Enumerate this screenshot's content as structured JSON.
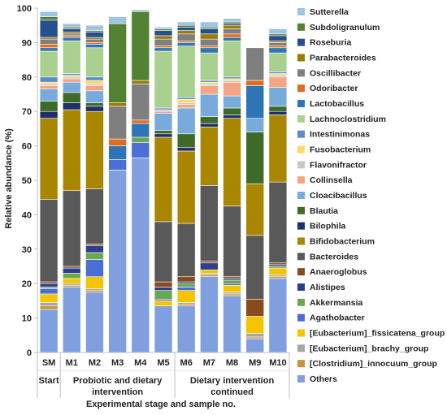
{
  "chart_data": {
    "type": "bar",
    "stacked": true,
    "ylabel": "Relative abundance (%)",
    "xlabel": "Experimental stage and sample no.",
    "ylim": [
      0,
      100
    ],
    "yticks": [
      0,
      10,
      20,
      30,
      40,
      50,
      60,
      70,
      80,
      90,
      100
    ],
    "grid": false,
    "legend_position": "right",
    "categories": [
      "SM",
      "M1",
      "M2",
      "M3",
      "M4",
      "M5",
      "M6",
      "M7",
      "M8",
      "M9",
      "M10"
    ],
    "groups": [
      {
        "label": "Start",
        "categories": [
          "SM"
        ]
      },
      {
        "label": "Probiotic and dietary intervention",
        "categories": [
          "M1",
          "M2",
          "M3",
          "M4",
          "M5"
        ]
      },
      {
        "label": "Dietary intervention continued",
        "categories": [
          "M6",
          "M7",
          "M8",
          "M9",
          "M10"
        ]
      }
    ],
    "series": [
      {
        "name": "Others",
        "color": "#7f9fde",
        "values": [
          12.5,
          19.0,
          17.5,
          53.0,
          56.5,
          13.5,
          13.5,
          22.0,
          16.5,
          4.0,
          21.5
        ]
      },
      {
        "name": "[Clostridium]_innocuum_group",
        "color": "#c6953b",
        "values": [
          1.0,
          0.5,
          0.5,
          0,
          0,
          0,
          0.5,
          0.5,
          0.5,
          0.5,
          0.5
        ]
      },
      {
        "name": "[Eubacterium]_brachy_group",
        "color": "#a6a6a6",
        "values": [
          1.0,
          0.5,
          0.5,
          0,
          0,
          0,
          0.5,
          0.5,
          0.5,
          1.0,
          0.5
        ]
      },
      {
        "name": "[Eubacterium]_fissicatena_group",
        "color": "#f5c400",
        "values": [
          2.5,
          1.5,
          3.5,
          0,
          0,
          1.5,
          3.5,
          1.0,
          2.0,
          5.0,
          2.0
        ]
      },
      {
        "name": "Agathobacter",
        "color": "#4a6dd6",
        "values": [
          1.5,
          0,
          5.0,
          3.0,
          4.5,
          0.5,
          1.0,
          0,
          0.5,
          0,
          0
        ]
      },
      {
        "name": "Akkermansia",
        "color": "#6aa84f",
        "values": [
          0.5,
          1.5,
          2.0,
          0,
          1.5,
          2.5,
          1.0,
          0,
          1.0,
          0,
          0.5
        ]
      },
      {
        "name": "Alistipes",
        "color": "#2e3e8e",
        "values": [
          1.0,
          1.5,
          2.0,
          0,
          0,
          1.0,
          0.5,
          2.0,
          0.5,
          0,
          0.5
        ]
      },
      {
        "name": "Anaeroglobus",
        "color": "#8a4b1c",
        "values": [
          0.5,
          0.5,
          0.5,
          0,
          0,
          1.5,
          1.5,
          0.5,
          0.5,
          5.0,
          0.5
        ]
      },
      {
        "name": "Bacteroides",
        "color": "#595959",
        "values": [
          24.0,
          22.0,
          16.0,
          0,
          0,
          17.5,
          15.5,
          22.0,
          20.5,
          18.5,
          23.5
        ]
      },
      {
        "name": "Bifidobacterium",
        "color": "#a88600",
        "values": [
          23.5,
          23.5,
          22.5,
          0,
          0,
          24.5,
          21.0,
          17.0,
          25.5,
          15.0,
          19.5
        ]
      },
      {
        "name": "Bilophila",
        "color": "#1f2f6b",
        "values": [
          2.0,
          2.0,
          1.5,
          0,
          0,
          1.0,
          1.0,
          1.0,
          1.0,
          0,
          1.0
        ]
      },
      {
        "name": "Blautia",
        "color": "#3f6b2a",
        "values": [
          3.0,
          3.0,
          1.0,
          0,
          0,
          1.0,
          4.0,
          2.0,
          2.0,
          15.0,
          1.5
        ]
      },
      {
        "name": "Cloacibacillus",
        "color": "#79aadc",
        "values": [
          3.5,
          3.0,
          3.5,
          0,
          0,
          5.0,
          7.5,
          6.5,
          3.5,
          4.0,
          5.5
        ]
      },
      {
        "name": "Collinsella",
        "color": "#f4a582",
        "values": [
          1.0,
          1.0,
          1.5,
          0,
          0,
          0.5,
          1.0,
          2.5,
          4.0,
          0,
          3.0
        ]
      },
      {
        "name": "Flavonifractor",
        "color": "#c8c8c8",
        "values": [
          0.5,
          0.5,
          0.5,
          0,
          0,
          0.5,
          0.5,
          0.5,
          0.5,
          0,
          0.5
        ]
      },
      {
        "name": "Fusobacterium",
        "color": "#ffd966",
        "values": [
          0.5,
          0.5,
          1.0,
          0,
          0,
          0,
          1.0,
          0.5,
          0.5,
          0,
          0.5
        ]
      },
      {
        "name": "Intestinimonas",
        "color": "#5b8cc7",
        "values": [
          1.5,
          0.5,
          1.0,
          0,
          0,
          0.5,
          0.5,
          0.5,
          0.5,
          0,
          0.5
        ]
      },
      {
        "name": "Lachnoclostridium",
        "color": "#a9d08e",
        "values": [
          7.5,
          9.5,
          8.5,
          0,
          0,
          16.5,
          15.0,
          8.0,
          10.5,
          0,
          5.5
        ]
      },
      {
        "name": "Lactobacillus",
        "color": "#2f75b5",
        "values": [
          1.0,
          1.0,
          1.0,
          4.0,
          4.0,
          1.0,
          1.0,
          1.5,
          1.0,
          9.5,
          1.5
        ]
      },
      {
        "name": "Odoribacter",
        "color": "#e06c1f",
        "values": [
          1.0,
          0.5,
          0.5,
          2.0,
          1.0,
          0.5,
          0.5,
          0.5,
          1.0,
          1.5,
          0.5
        ]
      },
      {
        "name": "Oscillibacter",
        "color": "#7f7f7f",
        "values": [
          1.5,
          0.5,
          1.0,
          9.5,
          10.5,
          2.0,
          2.0,
          2.0,
          1.5,
          9.5,
          1.0
        ]
      },
      {
        "name": "Parabacteroides",
        "color": "#9c7a00",
        "values": [
          0.5,
          0.5,
          0.5,
          1.0,
          1.0,
          1.0,
          1.0,
          1.5,
          1.0,
          0,
          0.5
        ]
      },
      {
        "name": "Roseburia",
        "color": "#264f8f",
        "values": [
          5.0,
          1.0,
          1.5,
          0,
          0,
          1.5,
          1.0,
          1.5,
          0.5,
          0,
          1.5
        ]
      },
      {
        "name": "Subdoligranulum",
        "color": "#548235",
        "values": [
          1.0,
          0.5,
          0.5,
          23.0,
          20.0,
          0.5,
          0.5,
          0.5,
          0.5,
          0,
          0.5
        ]
      },
      {
        "name": "Sutterella",
        "color": "#9dc3e6",
        "values": [
          1.5,
          1.0,
          1.5,
          2.0,
          0.5,
          0.5,
          1.0,
          1.5,
          1.0,
          0,
          1.5
        ]
      }
    ]
  }
}
